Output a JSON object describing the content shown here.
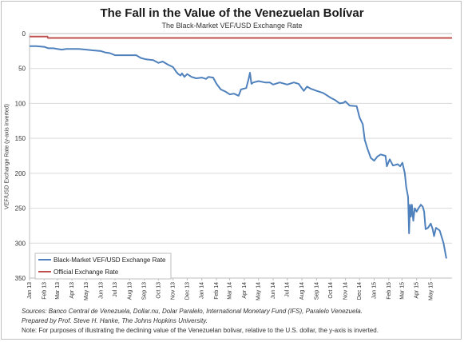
{
  "chart_data": {
    "type": "line",
    "title": "The Fall in the Value of the Venezuelan Bolívar",
    "subtitle": "The Black-Market VEF/USD Exchange Rate",
    "ylabel": "VEF/USD Exchange Rate (y-axis inverted)",
    "xlabel": "",
    "y_inverted": true,
    "ylim": [
      0,
      350
    ],
    "y_ticks": [
      0,
      50,
      100,
      150,
      200,
      250,
      300,
      350
    ],
    "x_range": [
      "2013-01-01",
      "2015-06-15"
    ],
    "x_tick_labels": [
      "Jan 13",
      "Feb 13",
      "Mar 13",
      "Apr 13",
      "May 13",
      "Jun 13",
      "Jul 13",
      "Aug 13",
      "Sep 13",
      "Oct 13",
      "Nov 13",
      "Dec 13",
      "Jan 14",
      "Feb 14",
      "Mar 14",
      "Apr 14",
      "May 14",
      "Jun 14",
      "Jul 14",
      "Aug 14",
      "Sep 14",
      "Oct 14",
      "Nov 14",
      "Dec 14",
      "Jan 15",
      "Feb 15",
      "Mar 15",
      "Apr 15",
      "May 15"
    ],
    "grid": "horizontal",
    "legend_position": "bottom-left",
    "series": [
      {
        "name": "Black-Market VEF/USD Exchange Rate",
        "color": "#4f81bd",
        "points": [
          [
            "2013-01-01",
            18
          ],
          [
            "2013-01-15",
            18
          ],
          [
            "2013-02-01",
            19
          ],
          [
            "2013-02-10",
            21
          ],
          [
            "2013-02-20",
            21
          ],
          [
            "2013-03-01",
            22
          ],
          [
            "2013-03-10",
            23
          ],
          [
            "2013-03-20",
            22
          ],
          [
            "2013-04-01",
            22
          ],
          [
            "2013-04-15",
            22
          ],
          [
            "2013-05-01",
            23
          ],
          [
            "2013-05-15",
            24
          ],
          [
            "2013-06-01",
            25
          ],
          [
            "2013-06-10",
            27
          ],
          [
            "2013-06-20",
            28
          ],
          [
            "2013-07-01",
            31
          ],
          [
            "2013-07-15",
            31
          ],
          [
            "2013-08-01",
            31
          ],
          [
            "2013-08-15",
            31
          ],
          [
            "2013-08-25",
            35
          ],
          [
            "2013-09-05",
            37
          ],
          [
            "2013-09-20",
            38
          ],
          [
            "2013-10-01",
            42
          ],
          [
            "2013-10-10",
            40
          ],
          [
            "2013-10-20",
            44
          ],
          [
            "2013-11-01",
            48
          ],
          [
            "2013-11-08",
            55
          ],
          [
            "2013-11-12",
            58
          ],
          [
            "2013-11-17",
            60
          ],
          [
            "2013-11-20",
            57
          ],
          [
            "2013-11-25",
            62
          ],
          [
            "2013-12-01",
            58
          ],
          [
            "2013-12-10",
            62
          ],
          [
            "2013-12-20",
            64
          ],
          [
            "2014-01-01",
            63
          ],
          [
            "2014-01-10",
            65
          ],
          [
            "2014-01-15",
            62
          ],
          [
            "2014-01-25",
            63
          ],
          [
            "2014-02-01",
            72
          ],
          [
            "2014-02-10",
            80
          ],
          [
            "2014-02-20",
            83
          ],
          [
            "2014-03-01",
            87
          ],
          [
            "2014-03-10",
            86
          ],
          [
            "2014-03-20",
            89
          ],
          [
            "2014-03-25",
            80
          ],
          [
            "2014-04-05",
            78
          ],
          [
            "2014-04-10",
            65
          ],
          [
            "2014-04-13",
            56
          ],
          [
            "2014-04-16",
            72
          ],
          [
            "2014-04-20",
            70
          ],
          [
            "2014-05-01",
            68
          ],
          [
            "2014-05-15",
            70
          ],
          [
            "2014-05-25",
            70
          ],
          [
            "2014-06-01",
            73
          ],
          [
            "2014-06-15",
            70
          ],
          [
            "2014-07-01",
            73
          ],
          [
            "2014-07-15",
            70
          ],
          [
            "2014-07-25",
            72
          ],
          [
            "2014-08-05",
            82
          ],
          [
            "2014-08-12",
            76
          ],
          [
            "2014-08-20",
            79
          ],
          [
            "2014-09-01",
            82
          ],
          [
            "2014-09-15",
            85
          ],
          [
            "2014-10-01",
            92
          ],
          [
            "2014-10-10",
            95
          ],
          [
            "2014-10-20",
            100
          ],
          [
            "2014-10-28",
            99
          ],
          [
            "2014-11-01",
            97
          ],
          [
            "2014-11-10",
            103
          ],
          [
            "2014-11-25",
            104
          ],
          [
            "2014-12-01",
            120
          ],
          [
            "2014-12-08",
            130
          ],
          [
            "2014-12-12",
            152
          ],
          [
            "2014-12-18",
            165
          ],
          [
            "2014-12-25",
            178
          ],
          [
            "2015-01-01",
            182
          ],
          [
            "2015-01-08",
            176
          ],
          [
            "2015-01-15",
            173
          ],
          [
            "2015-01-25",
            175
          ],
          [
            "2015-01-28",
            190
          ],
          [
            "2015-02-03",
            180
          ],
          [
            "2015-02-10",
            189
          ],
          [
            "2015-02-20",
            187
          ],
          [
            "2015-02-25",
            190
          ],
          [
            "2015-03-02",
            185
          ],
          [
            "2015-03-07",
            200
          ],
          [
            "2015-03-10",
            220
          ],
          [
            "2015-03-14",
            234
          ],
          [
            "2015-03-16",
            286
          ],
          [
            "2015-03-18",
            245
          ],
          [
            "2015-03-20",
            262
          ],
          [
            "2015-03-22",
            245
          ],
          [
            "2015-03-25",
            268
          ],
          [
            "2015-03-28",
            250
          ],
          [
            "2015-04-01",
            255
          ],
          [
            "2015-04-05",
            250
          ],
          [
            "2015-04-10",
            245
          ],
          [
            "2015-04-14",
            248
          ],
          [
            "2015-04-17",
            255
          ],
          [
            "2015-04-20",
            280
          ],
          [
            "2015-04-25",
            278
          ],
          [
            "2015-05-01",
            272
          ],
          [
            "2015-05-05",
            280
          ],
          [
            "2015-05-08",
            290
          ],
          [
            "2015-05-12",
            278
          ],
          [
            "2015-05-20",
            282
          ],
          [
            "2015-05-28",
            300
          ],
          [
            "2015-06-03",
            322
          ]
        ]
      },
      {
        "name": "Official Exchange Rate",
        "color": "#c0504d",
        "points": [
          [
            "2013-01-01",
            4.3
          ],
          [
            "2013-02-08",
            4.3
          ],
          [
            "2013-02-09",
            6.3
          ],
          [
            "2015-06-15",
            6.3
          ]
        ]
      }
    ]
  },
  "notes": {
    "sources": "Sources: Banco Central de Venezuela, Dollar.nu, Dolar Paralelo, International Monetary Fund (IFS), Paralelo Venezuela.",
    "prepared": "Prepared by Prof. Steve H. Hanke, The Johns Hopkins University.",
    "note": "Note: For purposes of illustrating the declining value of the Venezuelan bolivar, relative to the U.S. dollar, the y-axis is inverted."
  }
}
